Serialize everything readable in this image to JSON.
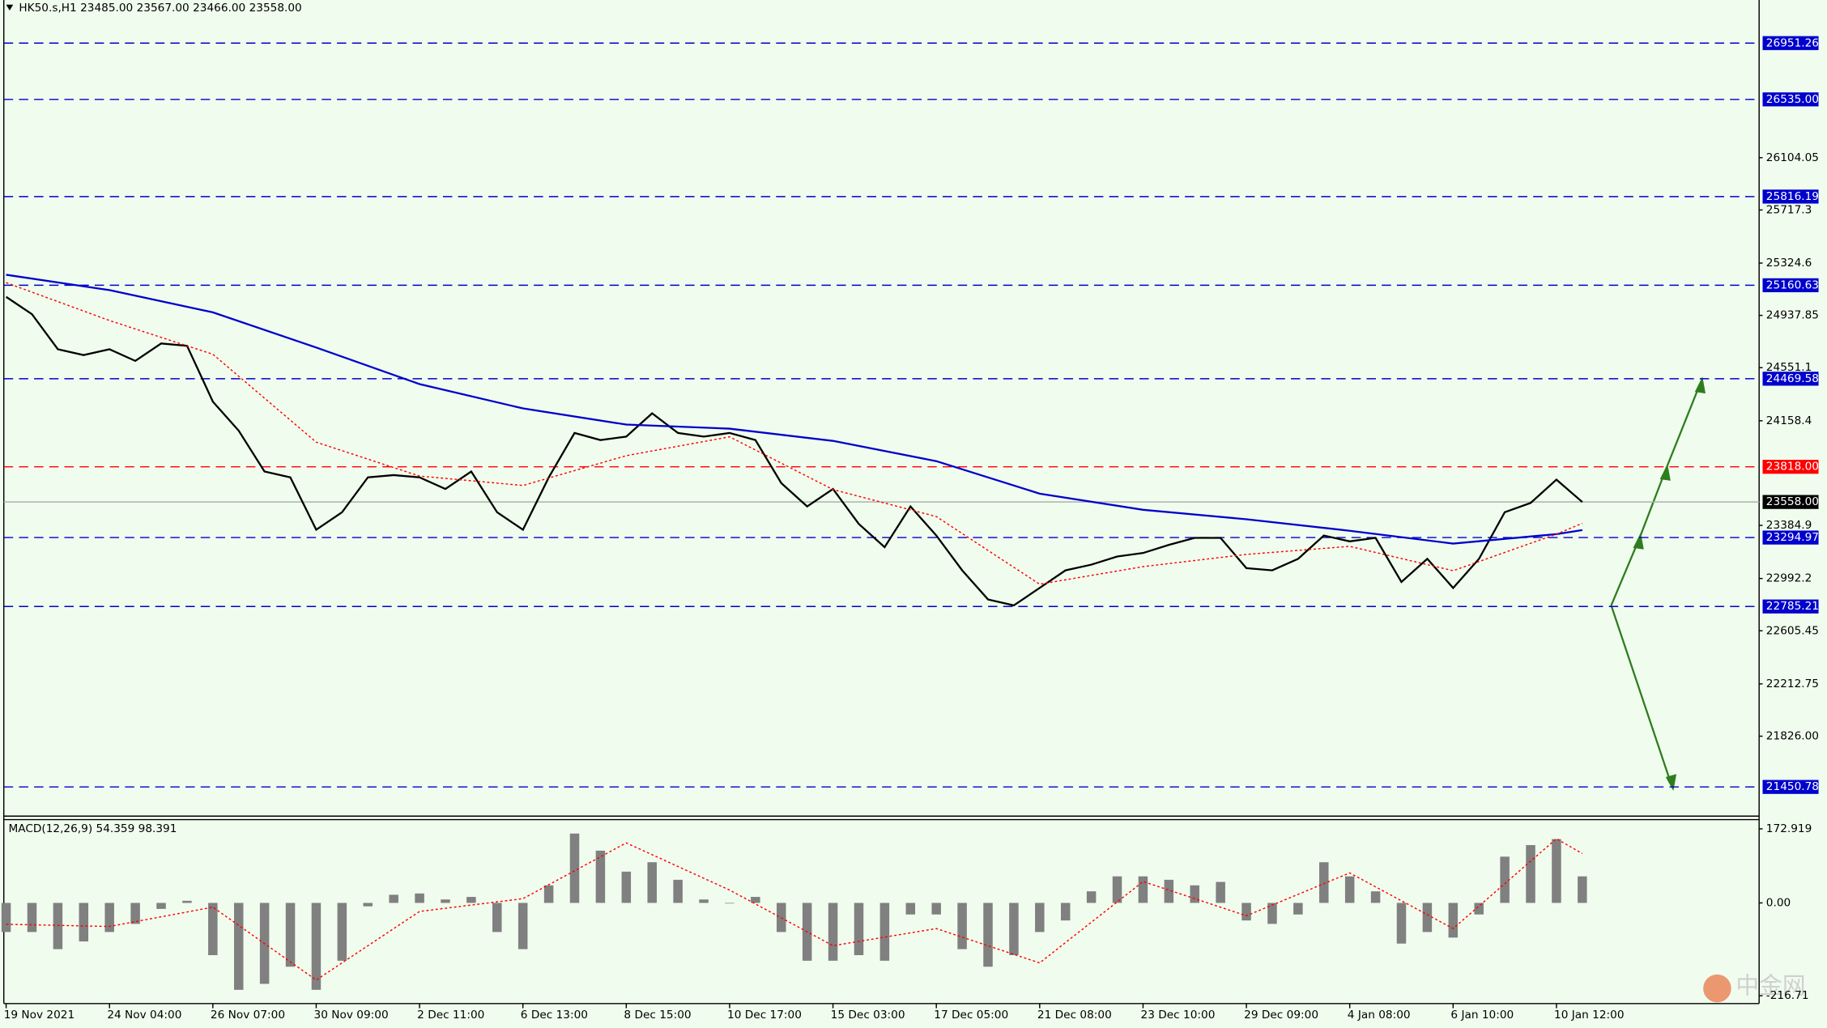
{
  "chart_data": [
    {
      "type": "line",
      "title": "HK50.s,H1  23485.00 23567.00 23466.00 23558.00",
      "categories": [
        "19 Nov 2021",
        null,
        null,
        null,
        "24 Nov 04:00",
        null,
        null,
        null,
        "26 Nov 07:00",
        null,
        null,
        null,
        "30 Nov 09:00",
        null,
        null,
        null,
        "2 Dec 11:00",
        null,
        null,
        null,
        "6 Dec 13:00",
        null,
        null,
        null,
        "8 Dec 15:00",
        null,
        null,
        null,
        "10 Dec 17:00",
        null,
        null,
        null,
        "15 Dec 03:00",
        null,
        null,
        null,
        "17 Dec 05:00",
        null,
        null,
        null,
        "21 Dec 08:00",
        null,
        null,
        null,
        "23 Dec 10:00",
        null,
        null,
        null,
        "29 Dec 09:00",
        null,
        null,
        null,
        "4 Jan 08:00",
        null,
        null,
        null,
        "6 Jan 10:00",
        null,
        null,
        null,
        "10 Jan 12:00",
        null
      ],
      "series": [
        {
          "color": "#000000",
          "dashed": false,
          "values": [
            25075,
            24946,
            24687,
            24644,
            24687,
            24601,
            24730,
            24713,
            24300,
            24085,
            23783,
            23740,
            23353,
            23482,
            23740,
            23757,
            23740,
            23654,
            23783,
            23482,
            23353,
            23740,
            24068,
            24016,
            24042,
            24214,
            24068,
            24042,
            24068,
            24016,
            23697,
            23525,
            23654,
            23396,
            23224,
            23525,
            23310,
            23052,
            22837,
            22793,
            22922,
            23052,
            23095,
            23155,
            23181,
            23241,
            23293,
            23293,
            23069,
            23052,
            23138,
            23310,
            23267,
            23293,
            22966,
            23138,
            22922,
            23138,
            23482,
            23551,
            23723,
            23558
          ]
        },
        {
          "color": "#0000cc",
          "dashed": false,
          "x": [
            0,
            4,
            8,
            12,
            16,
            20,
            24,
            28,
            32,
            36,
            40,
            44,
            48,
            52,
            56,
            60,
            61
          ],
          "values": [
            25238,
            25125,
            24960,
            24700,
            24430,
            24250,
            24130,
            24100,
            24010,
            23860,
            23620,
            23500,
            23430,
            23345,
            23250,
            23320,
            23350
          ]
        },
        {
          "color": "#ff0000",
          "dashed": true,
          "x": [
            0,
            4,
            8,
            12,
            16,
            20,
            24,
            28,
            32,
            36,
            40,
            44,
            48,
            52,
            56,
            60,
            61
          ],
          "values": [
            25180,
            24900,
            24650,
            24000,
            23750,
            23680,
            23900,
            24040,
            23650,
            23450,
            22950,
            23080,
            23170,
            23230,
            23050,
            23320,
            23400
          ]
        }
      ],
      "ylim": [
        21235,
        27270
      ],
      "yticks": [
        26104.05,
        25717.3,
        25324.6,
        24937.85,
        24551.1,
        24158.4,
        23384.9,
        22992.2,
        22605.45,
        22212.75,
        {
          "value": 21826,
          "label": "21826.00"
        }
      ],
      "levels": [
        {
          "value": 26951.26,
          "label": "26951.26",
          "color": "#0000cc"
        },
        {
          "value": 26535,
          "label": "26535.00",
          "color": "#0000cc"
        },
        {
          "value": 25816.19,
          "label": "25816.19",
          "color": "#0000cc"
        },
        {
          "value": 25160.63,
          "label": "25160.63",
          "color": "#0000cc"
        },
        {
          "value": 24469.58,
          "label": "24469.58",
          "color": "#0000cc"
        },
        {
          "value": 23818,
          "label": "23818.00",
          "color": "#ff0000"
        },
        {
          "value": 23294.97,
          "label": "23294.97",
          "color": "#0000cc"
        },
        {
          "value": 22785.21,
          "label": "22785.21",
          "color": "#0000cc"
        },
        {
          "value": 21450.78,
          "label": "21450.78",
          "color": "#0000cc"
        }
      ],
      "current": {
        "value": 23558,
        "label": "23558.00"
      }
    },
    {
      "type": "bar",
      "title": "MACD(12,26,9) 54.359 98.391",
      "series": [
        {
          "color": "#808080",
          "dashed": false,
          "values": [
            -68,
            -68,
            -108,
            -90,
            -68,
            -49,
            -14,
            5,
            -122,
            -203,
            -189,
            -149,
            -203,
            -135,
            -8,
            19,
            22,
            8,
            14,
            -68,
            -108,
            41,
            162,
            122,
            73,
            95,
            54,
            8,
            0,
            14,
            -68,
            -135,
            -135,
            -122,
            -135,
            -27,
            -27,
            -108,
            -149,
            -122,
            -68,
            -41,
            27,
            62,
            62,
            54,
            41,
            49,
            -41,
            -49,
            -27,
            95,
            62,
            27,
            -95,
            -68,
            -81,
            -27,
            108,
            135,
            149,
            62
          ]
        },
        {
          "color": "#ff0000",
          "dashed": true,
          "x": [
            0,
            4,
            8,
            12,
            16,
            20,
            24,
            28,
            32,
            36,
            40,
            44,
            48,
            52,
            56,
            60,
            61
          ],
          "values": [
            -50,
            -55,
            -10,
            -180,
            -20,
            10,
            140,
            30,
            -100,
            -60,
            -140,
            50,
            -30,
            70,
            -60,
            150,
            115
          ]
        }
      ],
      "ylim": [
        -235,
        194.5
      ],
      "yticks": [
        172.919,
        {
          "value": 0,
          "label": "0.00"
        },
        -216.71
      ]
    }
  ],
  "watermark": "中金网"
}
